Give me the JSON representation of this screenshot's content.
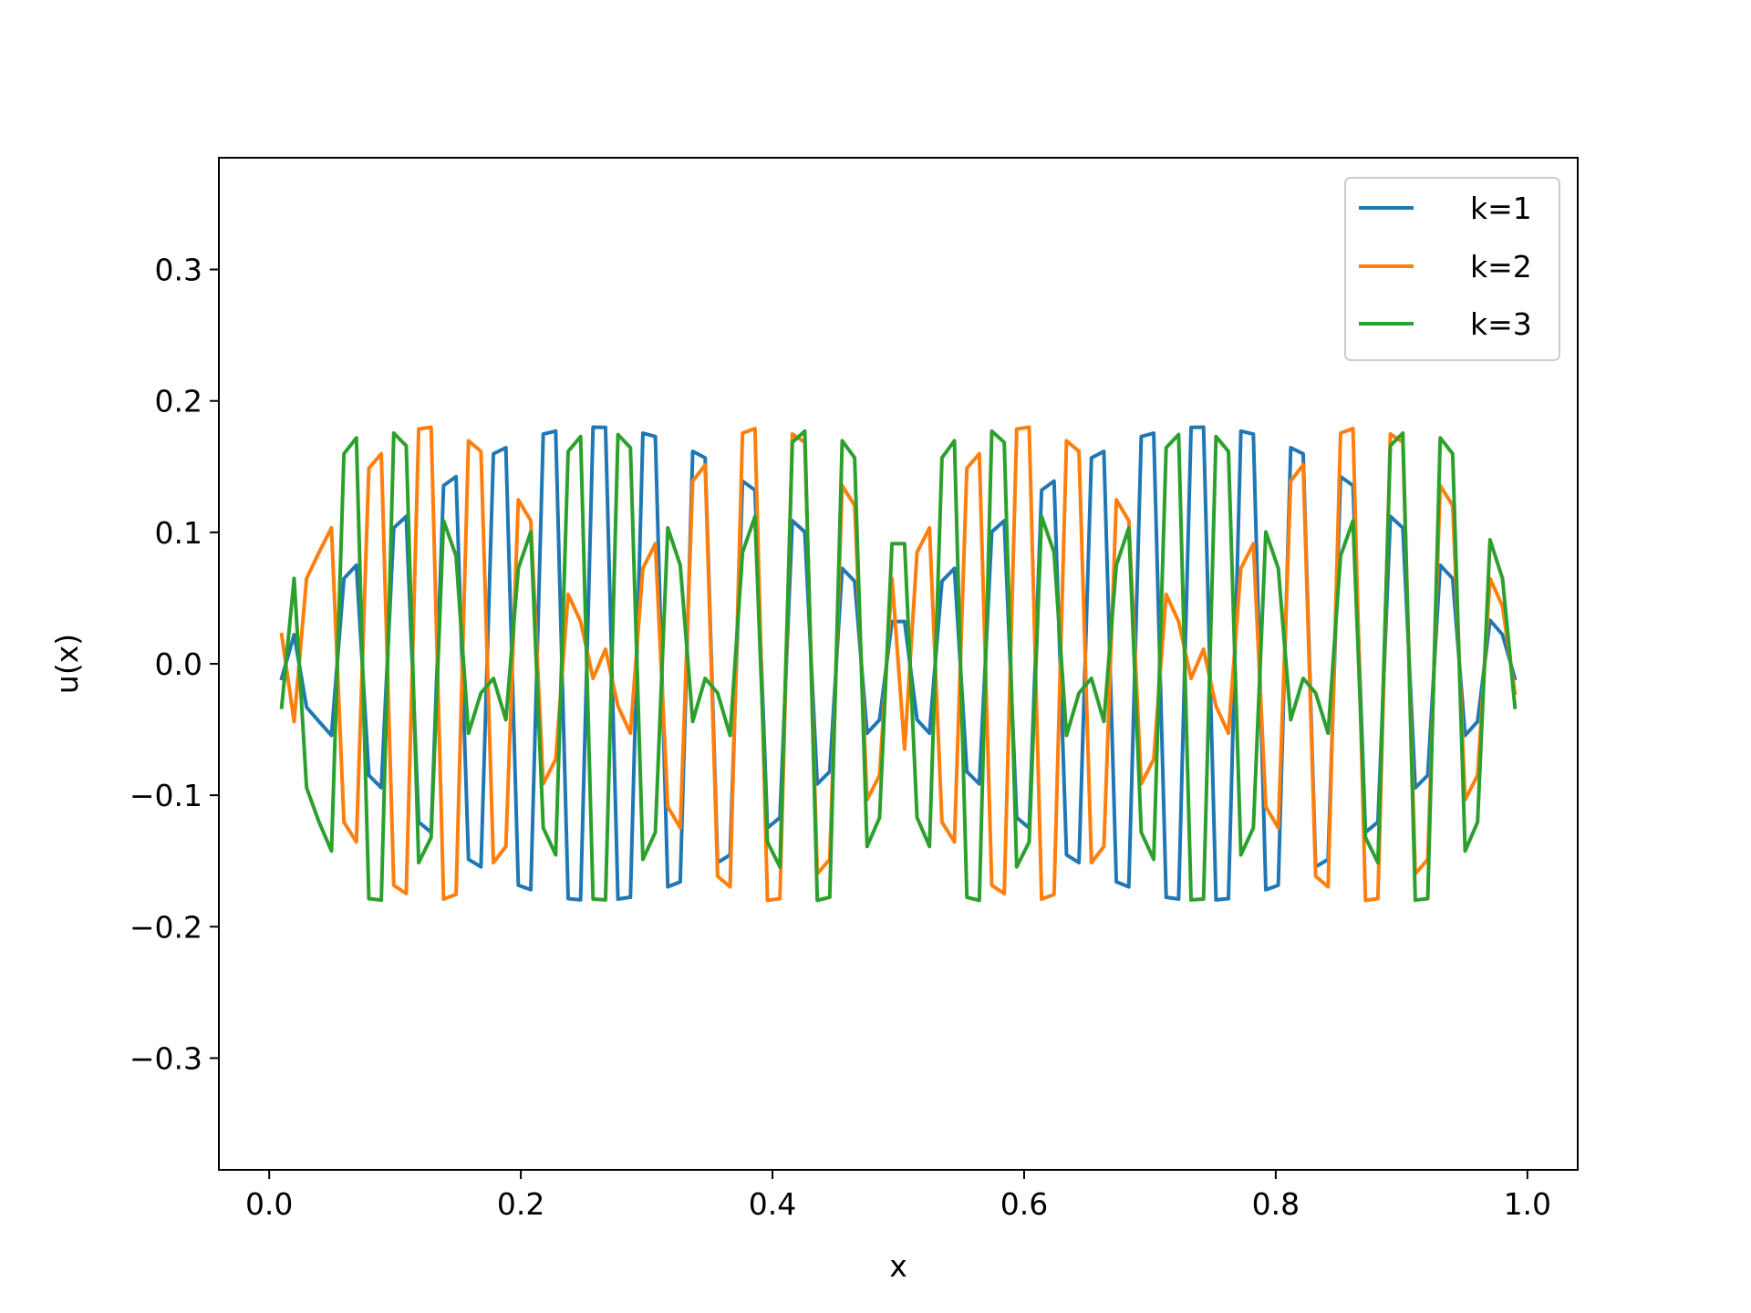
{
  "chart_data": {
    "type": "line",
    "xlabel": "x",
    "ylabel": "u(x)",
    "xlim": [
      -0.04,
      1.04
    ],
    "ylim": [
      -0.385,
      0.385
    ],
    "xticks": [
      0.0,
      0.2,
      0.4,
      0.6,
      0.8,
      1.0
    ],
    "xtick_labels": [
      "0.0",
      "0.2",
      "0.4",
      "0.6",
      "0.8",
      "1.0"
    ],
    "yticks": [
      -0.3,
      -0.2,
      -0.1,
      0.0,
      0.1,
      0.2,
      0.3
    ],
    "ytick_labels": [
      "−0.3",
      "−0.2",
      "−0.1",
      "0.0",
      "0.1",
      "0.2",
      "0.3"
    ],
    "grid": false,
    "legend_position": "top-right",
    "x": [
      0.0099,
      0.0198,
      0.0297,
      0.0396,
      0.0495,
      0.0594,
      0.0693,
      0.0792,
      0.0891,
      0.099,
      0.1089,
      0.1188,
      0.1287,
      0.1386,
      0.1485,
      0.1584,
      0.1683,
      0.1782,
      0.1881,
      0.198,
      0.2079,
      0.2178,
      0.2277,
      0.2376,
      0.2475,
      0.2574,
      0.2673,
      0.2772,
      0.2871,
      0.297,
      0.3069,
      0.3168,
      0.3267,
      0.3366,
      0.3465,
      0.3564,
      0.3663,
      0.3762,
      0.3861,
      0.396,
      0.4059,
      0.4158,
      0.4257,
      0.4356,
      0.4455,
      0.4554,
      0.4653,
      0.4752,
      0.4851,
      0.495,
      0.505,
      0.5149,
      0.5248,
      0.5347,
      0.5446,
      0.5545,
      0.5644,
      0.5743,
      0.5842,
      0.5941,
      0.604,
      0.6139,
      0.6238,
      0.6337,
      0.6436,
      0.6535,
      0.6634,
      0.6733,
      0.6832,
      0.6931,
      0.703,
      0.7129,
      0.7228,
      0.7327,
      0.7426,
      0.7525,
      0.7624,
      0.7723,
      0.7822,
      0.7921,
      0.802,
      0.8119,
      0.8218,
      0.8317,
      0.8416,
      0.8515,
      0.8614,
      0.8713,
      0.8812,
      0.8911,
      0.901,
      0.9109,
      0.9208,
      0.9307,
      0.9406,
      0.9505,
      0.9604,
      0.9703,
      0.9802,
      0.9901
    ],
    "series": [
      {
        "name": "k=1",
        "color": "#1f77b4",
        "values": [
          -0.0111,
          0.0222,
          -0.0331,
          -0.0439,
          -0.0545,
          0.0649,
          0.075,
          -0.0848,
          -0.0943,
          0.1034,
          0.1121,
          -0.1204,
          -0.1282,
          0.1356,
          0.1424,
          -0.1488,
          -0.1545,
          0.1598,
          0.1644,
          -0.1685,
          -0.1719,
          0.1748,
          0.177,
          -0.1786,
          -0.1796,
          0.18,
          0.1798,
          -0.179,
          -0.1776,
          0.1755,
          0.1729,
          -0.1697,
          -0.1659,
          0.1616,
          0.1567,
          -0.1513,
          -0.1454,
          0.139,
          0.1321,
          -0.1248,
          -0.117,
          0.1088,
          0.1003,
          -0.0914,
          -0.0821,
          0.0726,
          0.0628,
          -0.0528,
          -0.0426,
          0.0322,
          0.0322,
          -0.0426,
          -0.0528,
          0.0628,
          0.0726,
          -0.0821,
          -0.0914,
          0.1003,
          0.1088,
          -0.117,
          -0.1248,
          0.1321,
          0.139,
          -0.1454,
          -0.1513,
          0.1567,
          0.1616,
          -0.1659,
          -0.1697,
          0.1729,
          0.1755,
          -0.1776,
          -0.179,
          0.1798,
          0.18,
          -0.1796,
          -0.1786,
          0.177,
          0.1748,
          -0.1719,
          -0.1685,
          0.1644,
          0.1598,
          -0.1545,
          -0.1488,
          0.1424,
          0.1356,
          -0.1282,
          -0.1204,
          0.1121,
          0.1034,
          -0.0943,
          -0.0848,
          0.075,
          0.0649,
          -0.0545,
          -0.0439,
          0.0331,
          0.0222,
          -0.0111
        ]
      },
      {
        "name": "k=2",
        "color": "#ff7f0e",
        "values": [
          0.0222,
          -0.0439,
          0.0649,
          0.0848,
          0.1034,
          -0.1204,
          -0.1356,
          0.1488,
          0.1598,
          -0.1685,
          -0.1748,
          0.1786,
          0.18,
          -0.179,
          -0.1755,
          0.1697,
          0.1616,
          -0.1513,
          -0.139,
          0.1248,
          0.1088,
          -0.0914,
          -0.0726,
          0.0528,
          0.0322,
          -0.0111,
          0.0111,
          -0.0322,
          -0.0528,
          0.0726,
          0.0914,
          -0.1088,
          -0.1248,
          0.139,
          0.1513,
          -0.1616,
          -0.1697,
          0.1755,
          0.179,
          -0.18,
          -0.1786,
          0.1748,
          0.1685,
          -0.1598,
          -0.1488,
          0.1356,
          0.1204,
          -0.1034,
          -0.0848,
          0.0649,
          -0.0649,
          0.0848,
          0.1034,
          -0.1204,
          -0.1356,
          0.1488,
          0.1598,
          -0.1685,
          -0.1748,
          0.1786,
          0.18,
          -0.179,
          -0.1755,
          0.1697,
          0.1616,
          -0.1513,
          -0.139,
          0.1248,
          0.1088,
          -0.0914,
          -0.0726,
          0.0528,
          0.0322,
          -0.0111,
          0.0111,
          -0.0322,
          -0.0528,
          0.0726,
          0.0914,
          -0.1088,
          -0.1248,
          0.139,
          0.1513,
          -0.1616,
          -0.1697,
          0.1755,
          0.179,
          -0.18,
          -0.1786,
          0.1748,
          0.1685,
          -0.1598,
          -0.1488,
          0.1356,
          0.1204,
          -0.1034,
          -0.0848,
          0.0649,
          0.0439,
          -0.0222
        ]
      },
      {
        "name": "k=3",
        "color": "#2ca02c",
        "values": [
          -0.0331,
          0.0649,
          -0.0943,
          -0.1204,
          -0.1424,
          0.1598,
          0.1719,
          -0.1786,
          -0.1798,
          0.1755,
          0.1659,
          -0.1513,
          -0.1321,
          0.1088,
          0.0821,
          -0.0528,
          -0.0222,
          -0.0111,
          -0.0426,
          0.0726,
          0.1003,
          -0.1248,
          -0.1454,
          0.1616,
          0.1729,
          -0.179,
          -0.1796,
          0.1744,
          0.1644,
          -0.1488,
          -0.1282,
          0.1034,
          0.075,
          -0.0439,
          -0.0111,
          -0.0222,
          -0.0545,
          0.0848,
          0.1121,
          -0.1356,
          -0.1545,
          0.1685,
          0.177,
          -0.18,
          -0.1776,
          0.1697,
          0.1567,
          -0.139,
          -0.117,
          0.0914,
          0.0914,
          -0.117,
          -0.139,
          0.1567,
          0.1697,
          -0.1776,
          -0.18,
          0.177,
          0.1685,
          -0.1545,
          -0.1356,
          0.1121,
          0.0848,
          -0.0545,
          -0.0222,
          -0.0111,
          -0.0439,
          0.075,
          0.1034,
          -0.1282,
          -0.1488,
          0.1644,
          0.1744,
          -0.1796,
          -0.179,
          0.1729,
          0.1616,
          -0.1454,
          -0.1248,
          0.1003,
          0.0726,
          -0.0426,
          -0.0111,
          -0.0222,
          -0.0528,
          0.0821,
          0.1088,
          -0.1321,
          -0.1513,
          0.1659,
          0.1755,
          -0.1798,
          -0.1786,
          0.1719,
          0.1598,
          -0.1424,
          -0.1204,
          0.0943,
          0.0649,
          -0.0331
        ]
      }
    ]
  }
}
